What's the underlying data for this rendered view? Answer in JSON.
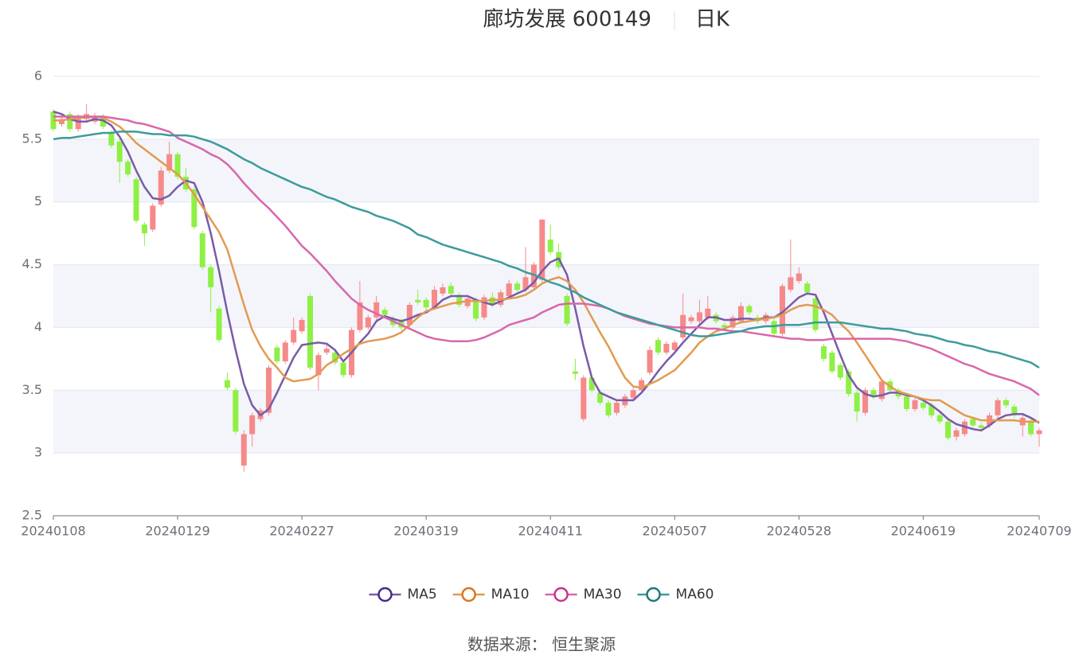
{
  "chart_data": {
    "type": "candlestick",
    "title": "廊坊发展 600149",
    "subtitle": "日K",
    "source": "数据来源： 恒生聚源",
    "up_color": "#f68989",
    "down_color": "#8ef044",
    "categories": [
      "20240108",
      null,
      null,
      null,
      null,
      null,
      null,
      null,
      null,
      null,
      null,
      null,
      null,
      null,
      null,
      "20240129",
      null,
      null,
      null,
      null,
      null,
      null,
      null,
      null,
      null,
      null,
      null,
      null,
      null,
      null,
      "20240227",
      null,
      null,
      null,
      null,
      null,
      null,
      null,
      null,
      null,
      null,
      null,
      null,
      null,
      null,
      "20240319",
      null,
      null,
      null,
      null,
      null,
      null,
      null,
      null,
      null,
      null,
      null,
      null,
      null,
      null,
      "20240411",
      null,
      null,
      null,
      null,
      null,
      null,
      null,
      null,
      null,
      null,
      null,
      null,
      null,
      null,
      "20240507",
      null,
      null,
      null,
      null,
      null,
      null,
      null,
      null,
      null,
      null,
      null,
      null,
      null,
      null,
      "20240528",
      null,
      null,
      null,
      null,
      null,
      null,
      null,
      null,
      null,
      null,
      null,
      null,
      null,
      null,
      "20240619",
      null,
      null,
      null,
      null,
      null,
      null,
      null,
      null,
      null,
      null,
      null,
      null,
      null,
      "20240709"
    ],
    "open": [
      5.72,
      5.62,
      5.7,
      5.58,
      5.66,
      5.64,
      5.68,
      5.55,
      5.48,
      5.32,
      5.18,
      4.82,
      4.78,
      4.98,
      5.25,
      5.38,
      5.2,
      5.1,
      4.75,
      4.48,
      4.15,
      3.58,
      3.5,
      2.9,
      3.15,
      3.27,
      3.32,
      3.84,
      3.73,
      3.88,
      3.97,
      4.25,
      3.62,
      3.8,
      3.8,
      3.72,
      3.62,
      3.98,
      4.0,
      4.08,
      4.14,
      4.07,
      4.05,
      4.02,
      4.22,
      4.22,
      4.16,
      4.27,
      4.33,
      4.26,
      4.17,
      4.22,
      4.08,
      4.24,
      4.18,
      4.25,
      4.35,
      4.3,
      4.32,
      4.38,
      4.7,
      4.6,
      4.25,
      3.65,
      3.27,
      3.6,
      3.48,
      3.4,
      3.32,
      3.38,
      3.44,
      3.5,
      3.64,
      3.9,
      3.8,
      3.82,
      3.92,
      4.05,
      4.05,
      4.08,
      4.1,
      4.02,
      4.0,
      4.05,
      4.17,
      4.08,
      4.05,
      4.05,
      3.95,
      4.3,
      4.37,
      4.35,
      4.23,
      3.85,
      3.8,
      3.7,
      3.65,
      3.48,
      3.32,
      3.5,
      3.43,
      3.57,
      3.5,
      3.45,
      3.35,
      3.4,
      3.38,
      3.3,
      3.25,
      3.13,
      3.15,
      3.27,
      3.22,
      3.22,
      3.3,
      3.42,
      3.37,
      3.22,
      3.25,
      3.15
    ],
    "close": [
      5.58,
      5.66,
      5.58,
      5.68,
      5.7,
      5.68,
      5.6,
      5.45,
      5.32,
      5.22,
      4.85,
      4.75,
      4.97,
      5.25,
      5.38,
      5.2,
      5.1,
      4.8,
      4.48,
      4.32,
      3.9,
      3.52,
      3.17,
      3.15,
      3.3,
      3.34,
      3.68,
      3.73,
      3.88,
      3.98,
      4.06,
      3.68,
      3.78,
      3.83,
      3.72,
      3.62,
      3.98,
      4.2,
      4.08,
      4.2,
      4.1,
      4.02,
      4.0,
      4.18,
      4.2,
      4.16,
      4.3,
      4.32,
      4.27,
      4.18,
      4.23,
      4.07,
      4.24,
      4.18,
      4.28,
      4.35,
      4.3,
      4.4,
      4.5,
      4.86,
      4.6,
      4.48,
      4.03,
      3.63,
      3.6,
      3.5,
      3.4,
      3.3,
      3.4,
      3.45,
      3.5,
      3.58,
      3.82,
      3.8,
      3.87,
      3.88,
      4.1,
      4.08,
      4.12,
      4.15,
      4.05,
      4.0,
      4.08,
      4.17,
      4.12,
      4.05,
      4.1,
      3.95,
      4.33,
      4.4,
      4.43,
      4.28,
      3.98,
      3.75,
      3.65,
      3.6,
      3.47,
      3.33,
      3.5,
      3.45,
      3.57,
      3.5,
      3.45,
      3.35,
      3.42,
      3.36,
      3.3,
      3.25,
      3.12,
      3.18,
      3.25,
      3.22,
      3.2,
      3.3,
      3.42,
      3.38,
      3.3,
      3.28,
      3.15,
      3.18
    ],
    "high": [
      5.74,
      5.69,
      5.72,
      5.7,
      5.78,
      5.71,
      5.7,
      5.57,
      5.5,
      5.34,
      5.2,
      4.84,
      4.99,
      5.28,
      5.48,
      5.4,
      5.27,
      5.12,
      4.77,
      4.5,
      4.17,
      3.64,
      3.52,
      3.18,
      3.32,
      3.36,
      3.7,
      3.86,
      3.9,
      4.08,
      4.08,
      4.27,
      3.8,
      3.86,
      3.82,
      3.74,
      4.0,
      4.37,
      4.1,
      4.25,
      4.16,
      4.09,
      4.07,
      4.2,
      4.3,
      4.24,
      4.33,
      4.35,
      4.36,
      4.28,
      4.25,
      4.24,
      4.26,
      4.28,
      4.3,
      4.38,
      4.37,
      4.64,
      4.52,
      4.86,
      4.82,
      4.67,
      4.27,
      3.75,
      3.62,
      3.62,
      3.5,
      3.42,
      3.42,
      3.47,
      3.52,
      3.6,
      3.85,
      3.92,
      3.89,
      3.9,
      4.27,
      4.1,
      4.22,
      4.25,
      4.12,
      4.04,
      4.1,
      4.2,
      4.19,
      4.1,
      4.12,
      4.07,
      4.35,
      4.7,
      4.48,
      4.37,
      4.25,
      3.87,
      3.82,
      3.72,
      3.67,
      3.5,
      3.52,
      3.52,
      3.59,
      3.59,
      3.52,
      3.47,
      3.44,
      3.42,
      3.4,
      3.32,
      3.27,
      3.2,
      3.27,
      3.29,
      3.24,
      3.32,
      3.44,
      3.44,
      3.39,
      3.3,
      3.27,
      3.2
    ],
    "low": [
      5.56,
      5.6,
      5.56,
      5.56,
      5.64,
      5.62,
      5.58,
      5.43,
      5.15,
      5.2,
      4.83,
      4.65,
      4.76,
      4.96,
      5.23,
      5.18,
      5.08,
      4.78,
      4.46,
      4.12,
      3.88,
      3.5,
      3.15,
      2.85,
      3.05,
      3.25,
      3.3,
      3.71,
      3.71,
      3.86,
      3.95,
      3.66,
      3.5,
      3.78,
      3.7,
      3.6,
      3.6,
      3.96,
      3.98,
      4.06,
      4.08,
      4.0,
      3.98,
      4.0,
      4.18,
      4.14,
      4.14,
      4.25,
      4.25,
      4.16,
      4.15,
      4.05,
      4.06,
      4.16,
      4.16,
      4.23,
      4.28,
      4.28,
      4.3,
      4.36,
      4.58,
      4.46,
      4.01,
      3.58,
      3.25,
      3.48,
      3.38,
      3.28,
      3.3,
      3.36,
      3.42,
      3.48,
      3.62,
      3.78,
      3.78,
      3.8,
      3.9,
      4.03,
      4.03,
      4.06,
      4.03,
      3.98,
      3.98,
      4.03,
      4.1,
      4.03,
      4.03,
      3.93,
      3.93,
      4.28,
      4.35,
      4.26,
      3.96,
      3.73,
      3.63,
      3.58,
      3.45,
      3.25,
      3.3,
      3.43,
      3.41,
      3.48,
      3.43,
      3.33,
      3.33,
      3.34,
      3.28,
      3.23,
      3.1,
      3.1,
      3.13,
      3.2,
      3.18,
      3.2,
      3.28,
      3.36,
      3.28,
      3.13,
      3.13,
      3.05
    ],
    "series": [
      {
        "name": "MA5",
        "color": "#7a5aa8",
        "icon_color": "#4a2a8c",
        "values": [
          5.72,
          5.7,
          5.66,
          5.64,
          5.64,
          5.66,
          5.65,
          5.61,
          5.52,
          5.4,
          5.25,
          5.12,
          5.03,
          5.02,
          5.05,
          5.12,
          5.17,
          5.15,
          5.0,
          4.75,
          4.45,
          4.12,
          3.82,
          3.55,
          3.38,
          3.3,
          3.35,
          3.48,
          3.62,
          3.76,
          3.86,
          3.87,
          3.88,
          3.87,
          3.82,
          3.73,
          3.8,
          3.88,
          3.95,
          4.05,
          4.09,
          4.07,
          4.05,
          4.07,
          4.1,
          4.12,
          4.16,
          4.22,
          4.25,
          4.25,
          4.25,
          4.22,
          4.2,
          4.18,
          4.21,
          4.24,
          4.27,
          4.3,
          4.36,
          4.45,
          4.52,
          4.55,
          4.42,
          4.15,
          3.85,
          3.6,
          3.48,
          3.45,
          3.42,
          3.42,
          3.42,
          3.48,
          3.56,
          3.65,
          3.73,
          3.8,
          3.88,
          3.95,
          4.02,
          4.08,
          4.08,
          4.06,
          4.06,
          4.07,
          4.07,
          4.06,
          4.08,
          4.08,
          4.12,
          4.18,
          4.24,
          4.27,
          4.26,
          4.12,
          3.95,
          3.78,
          3.62,
          3.52,
          3.47,
          3.45,
          3.46,
          3.48,
          3.48,
          3.46,
          3.45,
          3.42,
          3.38,
          3.33,
          3.27,
          3.23,
          3.21,
          3.19,
          3.18,
          3.22,
          3.27,
          3.3,
          3.31,
          3.31,
          3.28,
          3.24
        ]
      },
      {
        "name": "MA10",
        "color": "#e39a50",
        "icon_color": "#d8781c",
        "values": [
          5.65,
          5.65,
          5.66,
          5.67,
          5.67,
          5.68,
          5.67,
          5.64,
          5.6,
          5.54,
          5.47,
          5.42,
          5.37,
          5.32,
          5.27,
          5.22,
          5.15,
          5.06,
          4.96,
          4.86,
          4.76,
          4.62,
          4.4,
          4.18,
          3.98,
          3.85,
          3.75,
          3.68,
          3.6,
          3.57,
          3.58,
          3.59,
          3.63,
          3.7,
          3.74,
          3.79,
          3.83,
          3.87,
          3.89,
          3.9,
          3.91,
          3.93,
          3.96,
          4.02,
          4.08,
          4.13,
          4.15,
          4.17,
          4.19,
          4.2,
          4.21,
          4.21,
          4.21,
          4.22,
          4.22,
          4.23,
          4.24,
          4.26,
          4.3,
          4.35,
          4.38,
          4.4,
          4.37,
          4.3,
          4.2,
          4.08,
          3.96,
          3.85,
          3.72,
          3.6,
          3.53,
          3.52,
          3.55,
          3.58,
          3.62,
          3.66,
          3.73,
          3.8,
          3.88,
          3.93,
          3.97,
          3.99,
          4.02,
          4.04,
          4.05,
          4.06,
          4.07,
          4.08,
          4.1,
          4.14,
          4.17,
          4.18,
          4.17,
          4.14,
          4.1,
          4.03,
          3.97,
          3.88,
          3.78,
          3.68,
          3.58,
          3.53,
          3.49,
          3.47,
          3.45,
          3.43,
          3.42,
          3.42,
          3.38,
          3.34,
          3.3,
          3.28,
          3.26,
          3.26,
          3.26,
          3.26,
          3.26,
          3.25,
          3.25,
          3.25
        ]
      },
      {
        "name": "MA30",
        "color": "#d967aa",
        "icon_color": "#c8348a",
        "values": [
          5.68,
          5.68,
          5.68,
          5.68,
          5.68,
          5.68,
          5.68,
          5.67,
          5.66,
          5.65,
          5.63,
          5.62,
          5.6,
          5.58,
          5.56,
          5.51,
          5.48,
          5.45,
          5.42,
          5.38,
          5.35,
          5.3,
          5.23,
          5.15,
          5.08,
          5.01,
          4.95,
          4.88,
          4.81,
          4.73,
          4.65,
          4.59,
          4.52,
          4.45,
          4.37,
          4.3,
          4.23,
          4.18,
          4.14,
          4.11,
          4.08,
          4.05,
          4.02,
          3.99,
          3.96,
          3.93,
          3.91,
          3.9,
          3.89,
          3.89,
          3.89,
          3.9,
          3.92,
          3.95,
          3.98,
          4.02,
          4.04,
          4.06,
          4.08,
          4.12,
          4.15,
          4.18,
          4.19,
          4.19,
          4.19,
          4.18,
          4.17,
          4.15,
          4.12,
          4.09,
          4.07,
          4.05,
          4.03,
          4.02,
          4.01,
          4.0,
          4.0,
          4.0,
          4.0,
          3.99,
          3.99,
          3.98,
          3.97,
          3.97,
          3.96,
          3.95,
          3.94,
          3.93,
          3.92,
          3.91,
          3.91,
          3.9,
          3.9,
          3.9,
          3.91,
          3.91,
          3.91,
          3.91,
          3.91,
          3.91,
          3.91,
          3.91,
          3.9,
          3.89,
          3.87,
          3.85,
          3.83,
          3.8,
          3.77,
          3.74,
          3.71,
          3.69,
          3.66,
          3.63,
          3.61,
          3.59,
          3.57,
          3.54,
          3.51,
          3.46
        ]
      },
      {
        "name": "MA60",
        "color": "#3d9b9b",
        "icon_color": "#1e7a7a",
        "values": [
          5.5,
          5.51,
          5.51,
          5.52,
          5.53,
          5.54,
          5.55,
          5.55,
          5.56,
          5.56,
          5.56,
          5.55,
          5.54,
          5.54,
          5.53,
          5.53,
          5.53,
          5.52,
          5.5,
          5.48,
          5.45,
          5.42,
          5.38,
          5.34,
          5.31,
          5.27,
          5.24,
          5.21,
          5.18,
          5.15,
          5.12,
          5.1,
          5.07,
          5.04,
          5.02,
          4.99,
          4.96,
          4.94,
          4.92,
          4.89,
          4.87,
          4.85,
          4.82,
          4.79,
          4.74,
          4.72,
          4.69,
          4.66,
          4.64,
          4.62,
          4.6,
          4.58,
          4.56,
          4.54,
          4.52,
          4.49,
          4.47,
          4.44,
          4.42,
          4.39,
          4.36,
          4.34,
          4.31,
          4.28,
          4.24,
          4.21,
          4.18,
          4.15,
          4.12,
          4.1,
          4.08,
          4.06,
          4.04,
          4.02,
          4.0,
          3.98,
          3.96,
          3.94,
          3.93,
          3.93,
          3.94,
          3.95,
          3.96,
          3.97,
          3.99,
          4.0,
          4.01,
          4.01,
          4.02,
          4.02,
          4.02,
          4.03,
          4.04,
          4.04,
          4.04,
          4.04,
          4.03,
          4.02,
          4.01,
          4.0,
          3.99,
          3.99,
          3.98,
          3.97,
          3.95,
          3.94,
          3.93,
          3.91,
          3.89,
          3.88,
          3.86,
          3.85,
          3.83,
          3.81,
          3.8,
          3.78,
          3.76,
          3.74,
          3.72,
          3.68
        ]
      }
    ],
    "ylim": [
      2.5,
      6
    ],
    "yticks": [
      2.5,
      3,
      3.5,
      4,
      4.5,
      5,
      5.5,
      6
    ],
    "grid": true,
    "split_area": true,
    "legend_position": "bottom"
  }
}
